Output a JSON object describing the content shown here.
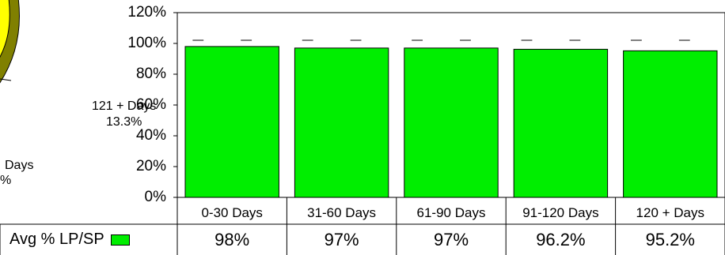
{
  "pie_labels": [
    {
      "line1": "121 + Days",
      "line2": "13.3%"
    },
    {
      "line1": "Days",
      "line2": "%"
    }
  ],
  "chart_data": {
    "type": "bar",
    "categories": [
      "0-30 Days",
      "31-60 Days",
      "61-90 Days",
      "91-120 Days",
      "120 + Days"
    ],
    "series": [
      {
        "name": "Avg % LP/SP",
        "values": [
          98,
          97,
          97,
          96.2,
          95.2
        ],
        "color": "#00ee00"
      }
    ],
    "value_labels": [
      "98%",
      "97%",
      "97%",
      "96.2%",
      "95.2%"
    ],
    "yticks": [
      "0%",
      "20%",
      "40%",
      "60%",
      "80%",
      "100%",
      "120%"
    ],
    "ylim": [
      0,
      120
    ],
    "grid": false,
    "legend_placement": "data-table"
  }
}
